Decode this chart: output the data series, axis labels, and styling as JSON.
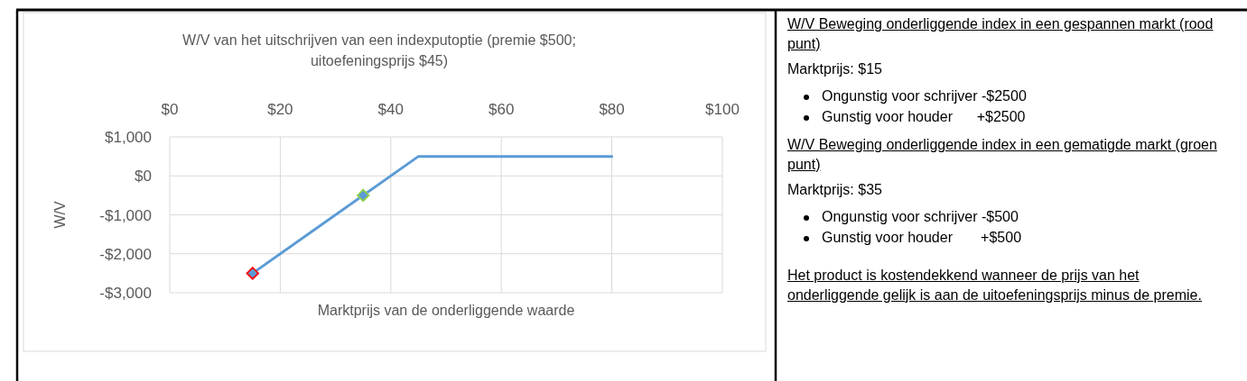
{
  "chart_data": [
    {
      "type": "line",
      "title": "W/V van het uitschrijven van een indexputoptie (premie $500; uitoefeningsprijs $45)",
      "xlabel": "Marktprijs van de onderliggende waarde",
      "ylabel": "W/V",
      "xlim": [
        0,
        100
      ],
      "xticks": [
        {
          "value": 0,
          "label": "$0"
        },
        {
          "value": 20,
          "label": "$20"
        },
        {
          "value": 40,
          "label": "$40"
        },
        {
          "value": 60,
          "label": "$60"
        },
        {
          "value": 80,
          "label": "$80"
        },
        {
          "value": 100,
          "label": "$100"
        }
      ],
      "ylim": [
        -3000,
        1000
      ],
      "yticks": [
        {
          "value": -3000,
          "label": "-$3,000"
        },
        {
          "value": -2000,
          "label": "-$2,000"
        },
        {
          "value": -1000,
          "label": "-$1,000"
        },
        {
          "value": 0,
          "label": "$0"
        },
        {
          "value": 1000,
          "label": "$1,000"
        }
      ],
      "grid": true,
      "series": [
        {
          "type": "line",
          "color": "#5b9bd5",
          "x": [
            15,
            45,
            80
          ],
          "values": [
            -2500,
            500,
            500
          ],
          "marker": "none"
        },
        {
          "type": "scatter",
          "color": "#5b9bd5",
          "colors": [
            "#ff0000",
            "#92d050"
          ],
          "x": [
            15,
            35
          ],
          "values": [
            -2500,
            -500
          ],
          "marker": "diamond"
        }
      ]
    },
    {
      "type": "other",
      "annotations": [
        "W/V Beweging onderliggende index in een gespannen markt (rood punt)",
        "Marktprijs: $15",
        "Ongunstig voor schrijver -$2500",
        "Gunstig voor houder      +$2500",
        "W/V Beweging onderliggende index in een gematigde markt (groen punt)",
        "Marktprijs: $35",
        "Ongunstig voor schrijver -$500",
        "Gunstig voor houder       +$500",
        "Het product is kostendekkend wanneer de prijs van het onderliggende gelijk is aan de uitoefeningsprijs minus de premie."
      ]
    }
  ]
}
